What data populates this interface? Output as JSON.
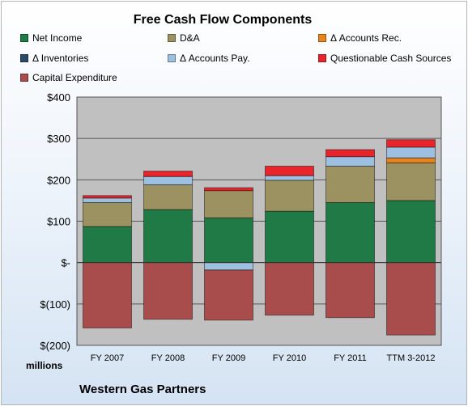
{
  "chart_data": {
    "type": "bar",
    "stacked": true,
    "title": "Free Cash Flow Components",
    "categories": [
      "FY 2007",
      "FY 2008",
      "FY 2009",
      "FY 2010",
      "FY 2011",
      "TTM 3-2012"
    ],
    "ylim": [
      -200,
      400
    ],
    "yticks": [
      400,
      300,
      200,
      100,
      0,
      -100,
      -200
    ],
    "ytick_labels": [
      "$400",
      "$300",
      "$200",
      "$100",
      "$-",
      "$(100)",
      "$(200)"
    ],
    "units_label": "millions",
    "grid": true,
    "legend_position": "top",
    "series": [
      {
        "name": "Net Income",
        "color": "#1f7a45",
        "values": [
          87,
          128,
          108,
          124,
          145,
          150
        ]
      },
      {
        "name": "D&A",
        "color": "#9c9160",
        "values": [
          58,
          60,
          66,
          75,
          88,
          91
        ]
      },
      {
        "name": "Δ Accounts Rec.",
        "color": "#e8841e",
        "values": [
          0,
          0,
          0,
          0,
          0,
          12
        ]
      },
      {
        "name": "Δ Inventories",
        "color": "#2e4a6b",
        "values": [
          0,
          0,
          0,
          0,
          0,
          0
        ]
      },
      {
        "name": "Δ Accounts Pay.",
        "color": "#9dbfe0",
        "values": [
          11,
          20,
          -18,
          11,
          23,
          26
        ]
      },
      {
        "name": "Questionable Cash Sources",
        "color": "#e8252a",
        "values": [
          6,
          13,
          7,
          23,
          17,
          18
        ]
      },
      {
        "name": "Capital Expenditure",
        "color": "#a94c4c",
        "values": [
          -158,
          -137,
          -121,
          -127,
          -133,
          -175
        ]
      }
    ]
  },
  "footer": {
    "company": "Western Gas Partners"
  }
}
